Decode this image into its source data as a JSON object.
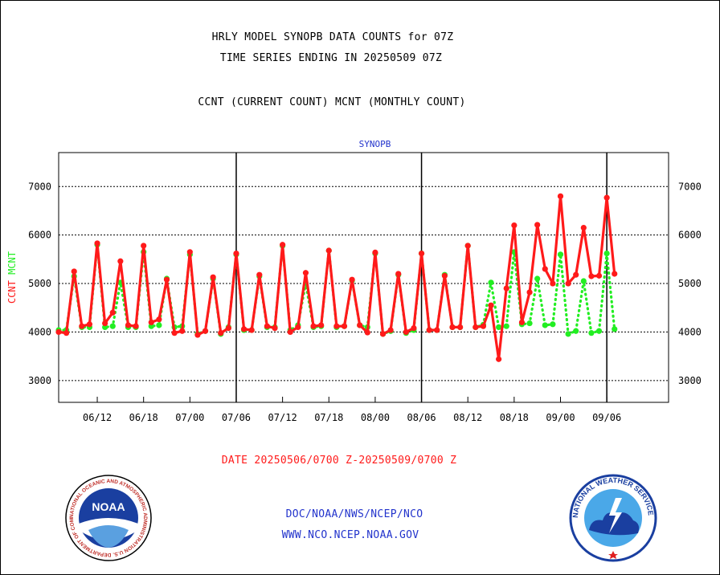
{
  "header": {
    "title_line1": "HRLY MODEL SYNOPB DATA COUNTS for 07Z",
    "title_line2": "TIME SERIES ENDING IN 20250509 07Z",
    "subtitle": "CCNT (CURRENT COUNT) MCNT (MONTHLY COUNT)"
  },
  "footer": {
    "date_range": "DATE 20250506/0700 Z-20250509/0700 Z",
    "link1": "DOC/NOAA/NWS/NCEP/NCO",
    "link2": "WWW.NCO.NCEP.NOAA.GOV"
  },
  "logos": {
    "noaa_label": "NOAA",
    "nws_ring_text": "NATIONAL WEATHER SERVICE",
    "noaa_ring_text": "NATIONAL OCEANIC AND ATMOSPHERIC ADMINISTRATION U.S. DEPARTMENT OF COMMERCE"
  },
  "colors": {
    "ccnt": "#ff1a1a",
    "mcnt": "#22ee22",
    "panel_title": "#2233cc",
    "footer_text": "#2233cc",
    "date_text": "#ff1a1a"
  },
  "chart_data": {
    "type": "line",
    "title": "SYNOPB",
    "ylabel_left": "CCNT",
    "ylabel_right": "MCNT",
    "ylim": [
      2550,
      7700
    ],
    "yticks": [
      3000,
      4000,
      5000,
      6000,
      7000
    ],
    "x_range": [
      0,
      79
    ],
    "xtick_labels": [
      "06/12",
      "06/18",
      "07/00",
      "07/06",
      "07/12",
      "07/18",
      "08/00",
      "08/06",
      "08/12",
      "08/18",
      "09/00",
      "09/06"
    ],
    "xtick_pos": [
      5,
      11,
      17,
      23,
      29,
      35,
      41,
      47,
      53,
      59,
      65,
      71
    ],
    "day_dividers": [
      23,
      47,
      71
    ],
    "grid": true,
    "series": [
      {
        "name": "CCNT",
        "style": "solid",
        "values": [
          4000,
          3980,
          5250,
          4120,
          4160,
          5830,
          4180,
          4400,
          5460,
          4140,
          4120,
          5780,
          4200,
          4260,
          5080,
          3980,
          4020,
          5650,
          3940,
          4020,
          5130,
          3980,
          4080,
          5620,
          4060,
          4040,
          5180,
          4120,
          4080,
          5800,
          4000,
          4100,
          5220,
          4120,
          4140,
          5680,
          4120,
          4120,
          5080,
          4140,
          3990,
          5640,
          3960,
          4040,
          5200,
          4000,
          4080,
          5620,
          4040,
          4040,
          5160,
          4100,
          4100,
          5780,
          4100,
          4120,
          4550,
          3440,
          4900,
          6200,
          4200,
          4820,
          6210,
          5300,
          5000,
          6800,
          5000,
          5180,
          6150,
          5150,
          5160,
          6770,
          5200
        ]
      },
      {
        "name": "MCNT",
        "style": "dotted",
        "values": [
          4040,
          4040,
          5150,
          4100,
          4100,
          5800,
          4100,
          4120,
          5020,
          4100,
          4100,
          5650,
          4120,
          4140,
          5100,
          4100,
          4120,
          5600,
          3960,
          4020,
          5100,
          3960,
          4100,
          5600,
          4040,
          4040,
          5150,
          4100,
          4100,
          5780,
          4040,
          4140,
          5000,
          4100,
          4120,
          5680,
          4100,
          4120,
          5060,
          4140,
          4100,
          5620,
          3960,
          4020,
          5180,
          3980,
          4040,
          5620,
          4040,
          4040,
          5180,
          4100,
          4100,
          5780,
          4100,
          4150,
          5020,
          4100,
          4120,
          5650,
          4160,
          4180,
          5100,
          4140,
          4160,
          5600,
          3960,
          4020,
          5050,
          3980,
          4020,
          5620,
          4060
        ]
      }
    ]
  }
}
